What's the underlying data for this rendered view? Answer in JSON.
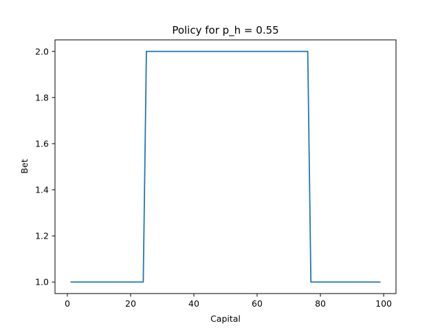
{
  "chart_data": {
    "type": "line",
    "title": "Policy for p_h = 0.55",
    "xlabel": "Capital",
    "ylabel": "Bet",
    "xlim": [
      -3.9,
      103.9
    ],
    "ylim": [
      0.95,
      2.05
    ],
    "xticks": [
      0,
      20,
      40,
      60,
      80,
      100
    ],
    "yticks": [
      1.0,
      1.2,
      1.4,
      1.6,
      1.8,
      2.0
    ],
    "xtick_labels": [
      "0",
      "20",
      "40",
      "60",
      "80",
      "100"
    ],
    "ytick_labels": [
      "1.0",
      "1.2",
      "1.4",
      "1.6",
      "1.8",
      "2.0"
    ],
    "grid": false,
    "series": [
      {
        "color": "#1f77b4",
        "x": [
          1,
          24,
          25,
          76,
          77,
          99
        ],
        "y": [
          1,
          1,
          2,
          2,
          1,
          1
        ]
      }
    ]
  }
}
